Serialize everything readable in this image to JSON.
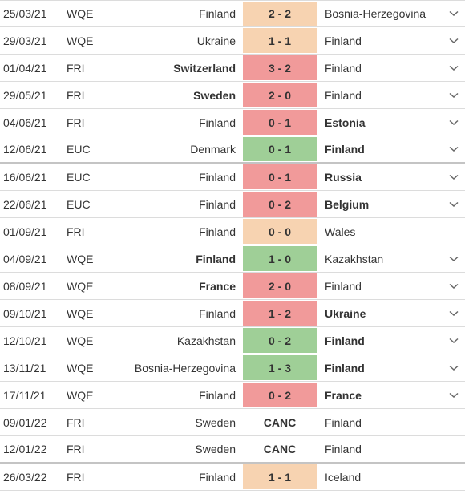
{
  "colors": {
    "draw": "#f7d3b1",
    "loss": "#f19a9a",
    "win": "#9fcf97",
    "divider": "#dcdcdc",
    "text": "#333333"
  },
  "matches": [
    {
      "date": "25/03/21",
      "competition": "WQE",
      "home": "Finland",
      "score": "2 - 2",
      "away": "Bosnia-Herzegovina",
      "result": "draw",
      "bold": "none",
      "expand": true
    },
    {
      "date": "29/03/21",
      "competition": "WQE",
      "home": "Ukraine",
      "score": "1 - 1",
      "away": "Finland",
      "result": "draw",
      "bold": "none",
      "expand": true
    },
    {
      "date": "01/04/21",
      "competition": "FRI",
      "home": "Switzerland",
      "score": "3 - 2",
      "away": "Finland",
      "result": "loss",
      "bold": "home",
      "expand": true
    },
    {
      "date": "29/05/21",
      "competition": "FRI",
      "home": "Sweden",
      "score": "2 - 0",
      "away": "Finland",
      "result": "loss",
      "bold": "home",
      "expand": true
    },
    {
      "date": "04/06/21",
      "competition": "FRI",
      "home": "Finland",
      "score": "0 - 1",
      "away": "Estonia",
      "result": "loss",
      "bold": "away",
      "expand": true
    },
    {
      "date": "12/06/21",
      "competition": "EUC",
      "home": "Denmark",
      "score": "0 - 1",
      "away": "Finland",
      "result": "win",
      "bold": "away",
      "expand": true
    },
    {
      "date": "16/06/21",
      "competition": "EUC",
      "home": "Finland",
      "score": "0 - 1",
      "away": "Russia",
      "result": "loss",
      "bold": "away",
      "expand": true
    },
    {
      "date": "22/06/21",
      "competition": "EUC",
      "home": "Finland",
      "score": "0 - 2",
      "away": "Belgium",
      "result": "loss",
      "bold": "away",
      "expand": true
    },
    {
      "date": "01/09/21",
      "competition": "FRI",
      "home": "Finland",
      "score": "0 - 0",
      "away": "Wales",
      "result": "draw",
      "bold": "none",
      "expand": false
    },
    {
      "date": "04/09/21",
      "competition": "WQE",
      "home": "Finland",
      "score": "1 - 0",
      "away": "Kazakhstan",
      "result": "win",
      "bold": "home",
      "expand": true
    },
    {
      "date": "08/09/21",
      "competition": "WQE",
      "home": "France",
      "score": "2 - 0",
      "away": "Finland",
      "result": "loss",
      "bold": "home",
      "expand": true
    },
    {
      "date": "09/10/21",
      "competition": "WQE",
      "home": "Finland",
      "score": "1 - 2",
      "away": "Ukraine",
      "result": "loss",
      "bold": "away",
      "expand": true
    },
    {
      "date": "12/10/21",
      "competition": "WQE",
      "home": "Kazakhstan",
      "score": "0 - 2",
      "away": "Finland",
      "result": "win",
      "bold": "away",
      "expand": true
    },
    {
      "date": "13/11/21",
      "competition": "WQE",
      "home": "Bosnia-Herzegovina",
      "score": "1 - 3",
      "away": "Finland",
      "result": "win",
      "bold": "away",
      "expand": true
    },
    {
      "date": "17/11/21",
      "competition": "WQE",
      "home": "Finland",
      "score": "0 - 2",
      "away": "France",
      "result": "loss",
      "bold": "away",
      "expand": true
    },
    {
      "date": "09/01/22",
      "competition": "FRI",
      "home": "Sweden",
      "score": "CANC",
      "away": "Finland",
      "result": "canc",
      "bold": "none",
      "expand": false
    },
    {
      "date": "12/01/22",
      "competition": "FRI",
      "home": "Sweden",
      "score": "CANC",
      "away": "Finland",
      "result": "canc",
      "bold": "none",
      "expand": false
    },
    {
      "date": "26/03/22",
      "competition": "FRI",
      "home": "Finland",
      "score": "1 - 1",
      "away": "Iceland",
      "result": "draw",
      "bold": "none",
      "expand": false
    }
  ],
  "icons": {
    "expand": "chevron-down-icon"
  }
}
